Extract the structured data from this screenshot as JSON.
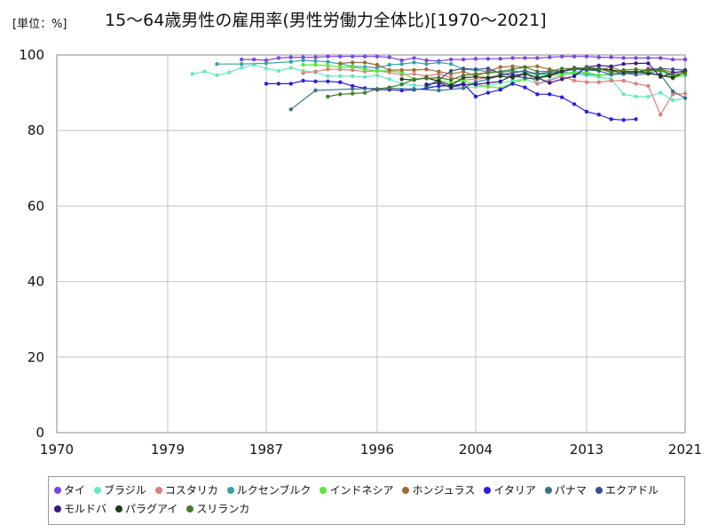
{
  "header": {
    "unit": "[単位：%]",
    "title": "15～64歳男性の雇用率(男性労働力全体比)[1970～2021]"
  },
  "chart_data": {
    "type": "line",
    "title": "15～64歳男性の雇用率(男性労働力全体比)[1970～2021]",
    "unit_label": "[単位：%]",
    "xlim": [
      1970,
      2021
    ],
    "ylim": [
      0,
      100
    ],
    "x_ticks": [
      1970,
      1979,
      1987,
      1996,
      2004,
      2013,
      2021
    ],
    "y_ticks": [
      0,
      20,
      40,
      60,
      80,
      100
    ],
    "grid": true,
    "legend_position": "bottom",
    "series": [
      {
        "name": "タイ",
        "color": "#7b46e0",
        "x": [
          1985,
          1986,
          1987,
          1988,
          1989,
          1990,
          1991,
          1992,
          1993,
          1994,
          1995,
          1996,
          1997,
          1998,
          1999,
          2000,
          2001,
          2002,
          2003,
          2004,
          2005,
          2006,
          2007,
          2008,
          2009,
          2010,
          2011,
          2012,
          2013,
          2014,
          2015,
          2016,
          2017,
          2018,
          2019,
          2020,
          2021
        ],
        "y": [
          98.8,
          98.8,
          98.6,
          99.2,
          99.4,
          99.4,
          99.4,
          99.6,
          99.6,
          99.6,
          99.6,
          99.6,
          99.4,
          98.6,
          99.2,
          98.6,
          98.4,
          98.8,
          98.8,
          99.0,
          99.0,
          99.0,
          99.2,
          99.2,
          99.2,
          99.4,
          99.6,
          99.6,
          99.6,
          99.4,
          99.4,
          99.2,
          99.2,
          99.2,
          99.2,
          98.8,
          98.8
        ]
      },
      {
        "name": "ブラジル",
        "color": "#66e8be",
        "x": [
          1981,
          1982,
          1983,
          1984,
          1985,
          1986,
          1987,
          1988,
          1989,
          1990,
          1991,
          1992,
          1993,
          1994,
          1995,
          1996,
          1997,
          1998,
          1999,
          2001,
          2002,
          2003,
          2004,
          2005,
          2006,
          2007,
          2008,
          2009,
          2011,
          2012,
          2013,
          2014,
          2015,
          2016,
          2017,
          2018,
          2019,
          2020,
          2021
        ],
        "y": [
          95.0,
          95.6,
          94.6,
          95.4,
          96.6,
          97.4,
          96.4,
          95.8,
          96.6,
          95.8,
          95.4,
          94.4,
          94.4,
          94.4,
          94.2,
          94.6,
          93.6,
          92.4,
          92.0,
          91.6,
          92.0,
          91.2,
          91.6,
          91.8,
          92.6,
          93.2,
          93.6,
          92.4,
          94.8,
          95.0,
          94.6,
          94.2,
          93.6,
          89.6,
          89.0,
          89.0,
          90.0,
          88.0,
          88.6
        ]
      },
      {
        "name": "コスタリカ",
        "color": "#d88080",
        "x": [
          1990,
          1991,
          1992,
          1993,
          1994,
          1995,
          1996,
          1997,
          1998,
          1999,
          2000,
          2001,
          2002,
          2003,
          2004,
          2005,
          2006,
          2007,
          2008,
          2009,
          2010,
          2011,
          2012,
          2013,
          2014,
          2015,
          2016,
          2017,
          2018,
          2019,
          2020,
          2021
        ],
        "y": [
          95.2,
          95.6,
          96.2,
          96.2,
          96.0,
          95.6,
          95.8,
          95.4,
          94.8,
          95.0,
          94.4,
          95.0,
          94.0,
          93.4,
          93.6,
          94.0,
          94.8,
          95.4,
          95.8,
          92.4,
          93.2,
          94.4,
          93.2,
          92.8,
          92.8,
          93.2,
          93.2,
          92.4,
          91.8,
          84.2,
          89.6,
          89.8
        ]
      },
      {
        "name": "ルクセンブルク",
        "color": "#36a2a8",
        "x": [
          1983,
          1985,
          1987,
          1989,
          1990,
          1991,
          1992,
          1993,
          1994,
          1995,
          1996,
          1997,
          1998,
          1999,
          2000,
          2001,
          2002,
          2003,
          2004,
          2005,
          2006,
          2007,
          2008,
          2009,
          2010,
          2011,
          2012,
          2013,
          2014,
          2015,
          2016,
          2017,
          2018,
          2019,
          2020,
          2021
        ],
        "y": [
          97.6,
          97.6,
          97.8,
          98.2,
          98.6,
          98.4,
          98.2,
          97.6,
          97.0,
          96.8,
          96.6,
          97.4,
          97.6,
          98.0,
          97.6,
          98.0,
          97.6,
          96.2,
          96.0,
          95.6,
          95.4,
          95.8,
          95.4,
          94.8,
          95.0,
          95.4,
          95.2,
          95.0,
          94.6,
          94.8,
          95.0,
          95.4,
          95.2,
          95.8,
          94.4,
          94.6
        ]
      },
      {
        "name": "インドネシア",
        "color": "#5ae63a",
        "x": [
          1990,
          1991,
          1992,
          1993,
          1994,
          1995,
          1996,
          1997,
          1998,
          1999,
          2000,
          2001,
          2002,
          2003,
          2004,
          2005,
          2006,
          2007,
          2008,
          2009,
          2010,
          2011,
          2012,
          2013,
          2014,
          2015,
          2016,
          2017,
          2018,
          2019,
          2020,
          2021
        ],
        "y": [
          97.4,
          97.4,
          97.2,
          96.8,
          96.8,
          96.2,
          95.8,
          95.8,
          95.4,
          93.6,
          93.8,
          93.2,
          92.8,
          93.2,
          92.2,
          91.6,
          91.2,
          92.6,
          93.6,
          94.0,
          95.0,
          94.8,
          95.6,
          95.4,
          94.6,
          95.0,
          95.4,
          95.4,
          95.8,
          96.0,
          93.8,
          94.8
        ]
      },
      {
        "name": "ホンジュラス",
        "color": "#a06a36",
        "x": [
          1993,
          1994,
          1995,
          1996,
          1997,
          1998,
          1999,
          2000,
          2001,
          2002,
          2003,
          2004,
          2005,
          2006,
          2007,
          2008,
          2009,
          2010,
          2011,
          2012,
          2013,
          2014,
          2015,
          2016,
          2017,
          2018,
          2019,
          2020,
          2021
        ],
        "y": [
          97.8,
          98.0,
          98.0,
          97.4,
          96.0,
          96.0,
          96.0,
          96.2,
          95.6,
          95.0,
          95.6,
          94.4,
          95.6,
          96.8,
          97.0,
          96.8,
          97.0,
          96.2,
          95.6,
          96.2,
          96.2,
          96.0,
          96.8,
          95.6,
          95.2,
          96.4,
          96.2,
          95.4,
          95.6
        ]
      },
      {
        "name": "イタリア",
        "color": "#2a20d8",
        "x": [
          1987,
          1988,
          1989,
          1990,
          1991,
          1992,
          1993,
          1994,
          1995,
          1996,
          1997,
          1998,
          1999,
          2000,
          2001,
          2002,
          2003,
          2004,
          2005,
          2006,
          2007,
          2008,
          2009,
          2010,
          2011,
          2012,
          2013,
          2014,
          2015,
          2016,
          2017
        ],
        "y": [
          92.4,
          92.4,
          92.4,
          93.2,
          93.0,
          93.0,
          92.8,
          91.8,
          91.2,
          90.8,
          90.8,
          90.6,
          90.8,
          91.2,
          91.8,
          91.8,
          92.4,
          89.0,
          90.0,
          90.8,
          92.4,
          91.4,
          89.6,
          89.6,
          88.8,
          87.0,
          85.0,
          84.2,
          83.0,
          82.8,
          83.0
        ]
      },
      {
        "name": "パナマ",
        "color": "#3a7090",
        "x": [
          1989,
          1991,
          1994,
          1997,
          1999,
          2001,
          2003,
          2004,
          2005,
          2006,
          2007,
          2008,
          2009,
          2010,
          2011,
          2012,
          2013,
          2014,
          2015,
          2016,
          2017,
          2018,
          2019,
          2020,
          2021
        ],
        "y": [
          85.6,
          90.6,
          91.0,
          91.2,
          91.0,
          90.6,
          91.2,
          92.8,
          93.6,
          94.6,
          95.2,
          95.8,
          95.0,
          95.4,
          95.8,
          96.2,
          96.0,
          95.8,
          94.8,
          95.2,
          94.8,
          95.0,
          94.8,
          90.4,
          88.6
        ]
      },
      {
        "name": "エクアドル",
        "color": "#3c4e88",
        "x": [
          2000,
          2001,
          2002,
          2003,
          2004,
          2005,
          2006,
          2007,
          2008,
          2009,
          2010,
          2011,
          2012,
          2013,
          2014,
          2015,
          2016,
          2017,
          2018,
          2019,
          2020,
          2021
        ],
        "y": [
          91.6,
          93.4,
          95.8,
          96.4,
          96.2,
          96.4,
          95.2,
          94.4,
          94.0,
          93.6,
          94.8,
          95.8,
          96.2,
          96.6,
          96.4,
          96.0,
          95.0,
          95.4,
          96.0,
          96.4,
          96.2,
          96.0
        ]
      },
      {
        "name": "モルドバ",
        "color": "#3a1888",
        "x": [
          2000,
          2001,
          2002,
          2003,
          2004,
          2005,
          2006,
          2007,
          2008,
          2009,
          2010,
          2011,
          2012,
          2013,
          2014,
          2015,
          2016,
          2017,
          2018,
          2019,
          2020,
          2021
        ],
        "y": [
          92.2,
          92.6,
          91.4,
          92.2,
          92.2,
          92.6,
          93.0,
          94.6,
          95.0,
          94.0,
          92.6,
          93.6,
          94.4,
          96.8,
          97.2,
          97.0,
          97.6,
          97.8,
          97.8,
          94.2,
          95.2,
          95.8
        ]
      },
      {
        "name": "パラグアイ",
        "color": "#1e3a12",
        "x": [
          1998,
          1999,
          2000,
          2001,
          2002,
          2003,
          2004,
          2005,
          2006,
          2007,
          2008,
          2009,
          2010,
          2011,
          2012,
          2013,
          2014,
          2015,
          2016,
          2017,
          2018,
          2019,
          2020,
          2021
        ],
        "y": [
          93.6,
          93.4,
          94.0,
          93.0,
          92.0,
          94.0,
          94.2,
          94.0,
          94.4,
          94.0,
          95.0,
          94.0,
          94.4,
          95.6,
          96.6,
          96.4,
          96.2,
          96.0,
          95.6,
          95.6,
          95.2,
          94.6,
          94.0,
          95.6
        ]
      },
      {
        "name": "スリランカ",
        "color": "#4a7a2c",
        "x": [
          1992,
          1993,
          1994,
          1995,
          1996,
          1997,
          1998,
          1999,
          2000,
          2001,
          2002,
          2003,
          2004,
          2005,
          2006,
          2007,
          2008,
          2009,
          2010,
          2011,
          2012,
          2013,
          2014,
          2015,
          2016,
          2017,
          2018,
          2019,
          2020,
          2021
        ],
        "y": [
          89.0,
          89.6,
          89.8,
          90.0,
          91.0,
          91.4,
          92.2,
          93.6,
          93.8,
          94.0,
          93.4,
          94.6,
          95.0,
          95.2,
          95.6,
          96.2,
          96.8,
          95.6,
          95.6,
          96.4,
          96.4,
          96.6,
          96.4,
          95.4,
          96.0,
          96.2,
          95.8,
          96.0,
          94.8,
          95.2
        ]
      }
    ]
  }
}
